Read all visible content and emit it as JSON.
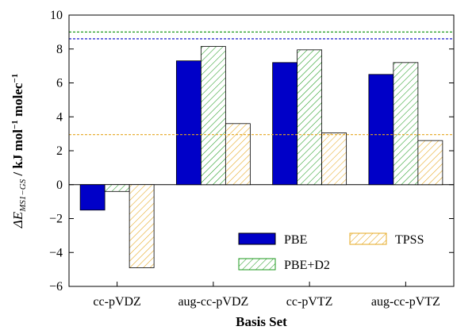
{
  "chart_data": {
    "type": "bar",
    "categories": [
      "cc-pVDZ",
      "aug-cc-pVDZ",
      "cc-pVTZ",
      "aug-cc-pVTZ"
    ],
    "series": [
      {
        "name": "PBE",
        "values": [
          -1.5,
          7.3,
          7.2,
          6.5
        ],
        "color": "#0000c8",
        "pattern": "solid"
      },
      {
        "name": "PBE+D2",
        "values": [
          -0.4,
          8.15,
          7.95,
          7.2
        ],
        "color": "#1e9a1e",
        "pattern": "hatch"
      },
      {
        "name": "TPSS",
        "values": [
          -4.9,
          3.6,
          3.05,
          2.6
        ],
        "color": "#e6a820",
        "pattern": "hatch"
      }
    ],
    "reference_lines": [
      {
        "value": 9.0,
        "color": "#1e9a1e"
      },
      {
        "value": 8.6,
        "color": "#0000c8"
      },
      {
        "value": 2.95,
        "color": "#e6a820"
      }
    ],
    "xlabel": "Basis Set",
    "ylabel": {
      "prefix": "ΔE",
      "subscript": "MS1−GS",
      "unit": " / kJ mol",
      "superscript": "−1",
      "suffix": " molec",
      "suffix_superscript": "−1"
    },
    "ylim": [
      -6,
      10
    ],
    "yticks": [
      -6,
      -4,
      -2,
      0,
      2,
      4,
      6,
      8,
      10
    ],
    "grid": false,
    "legend": {
      "placement": "bottom-right",
      "columns": 2
    }
  }
}
